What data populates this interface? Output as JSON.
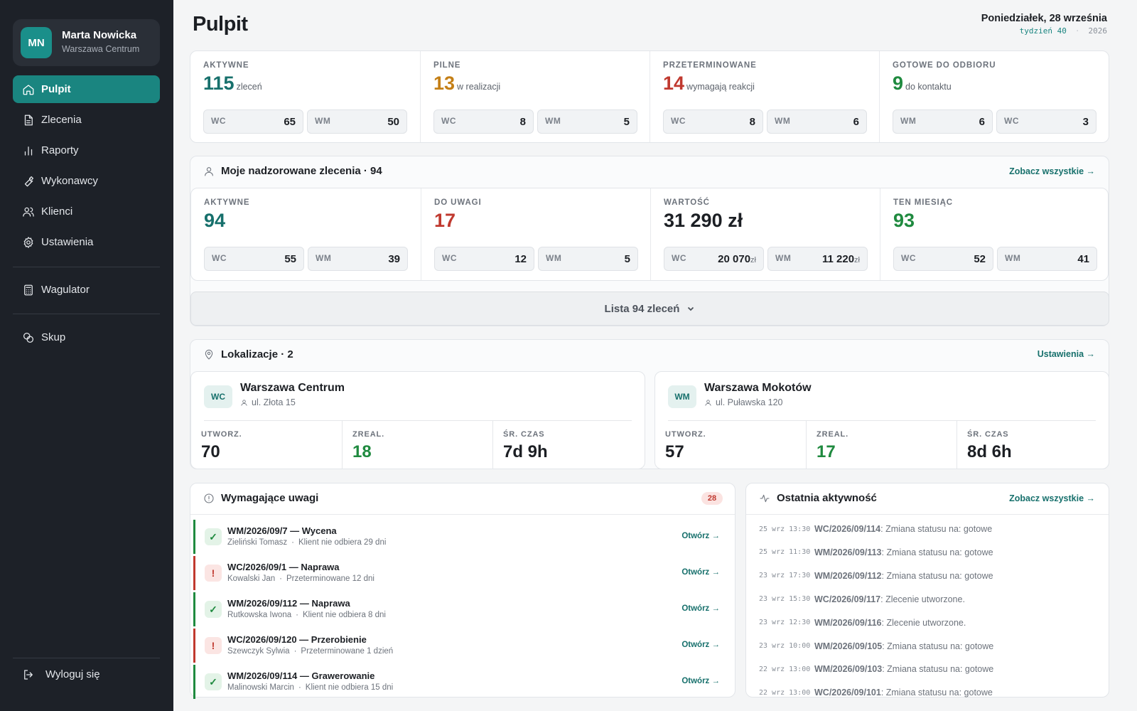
{
  "user": {
    "initials": "MN",
    "name": "Marta Nowicka",
    "location": "Warszawa Centrum"
  },
  "nav": {
    "items": [
      {
        "label": "Pulpit",
        "icon": "home-icon",
        "active": true
      },
      {
        "label": "Zlecenia",
        "icon": "document-icon"
      },
      {
        "label": "Raporty",
        "icon": "bar-chart-icon"
      },
      {
        "label": "Wykonawcy",
        "icon": "wrench-icon"
      },
      {
        "label": "Klienci",
        "icon": "users-icon"
      },
      {
        "label": "Ustawienia",
        "icon": "gear-icon"
      },
      {
        "label": "Wagulator",
        "icon": "calculator-icon"
      },
      {
        "label": "Skup",
        "icon": "coins-icon"
      }
    ],
    "logout": "Wyloguj się"
  },
  "header": {
    "title": "Pulpit",
    "date": "Poniedziałek, 28 września",
    "week": "tydzień 40",
    "year": "2026"
  },
  "summary": [
    {
      "label": "AKTYWNE",
      "value": "115",
      "unit": "zleceń",
      "color": "#17706c",
      "pills": [
        {
          "k": "WC",
          "v": "65"
        },
        {
          "k": "WM",
          "v": "50"
        }
      ]
    },
    {
      "label": "PILNE",
      "value": "13",
      "unit": "w realizacji",
      "color": "#c47f16",
      "pills": [
        {
          "k": "WC",
          "v": "8"
        },
        {
          "k": "WM",
          "v": "5"
        }
      ]
    },
    {
      "label": "PRZETERMINOWANE",
      "value": "14",
      "unit": "wymagają reakcji",
      "color": "#c0392f",
      "pills": [
        {
          "k": "WC",
          "v": "8"
        },
        {
          "k": "WM",
          "v": "6"
        }
      ]
    },
    {
      "label": "GOTOWE DO ODBIORU",
      "value": "9",
      "unit": "do kontaktu",
      "color": "#1f8a3f",
      "pills": [
        {
          "k": "WM",
          "v": "6"
        },
        {
          "k": "WC",
          "v": "3"
        }
      ]
    }
  ],
  "supervised": {
    "title": "Moje nadzorowane zlecenia · 94",
    "link": "Zobacz wszystkie →",
    "stats": [
      {
        "label": "AKTYWNE",
        "value": "94",
        "color": "#17706c",
        "pills": [
          {
            "k": "WC",
            "v": "55"
          },
          {
            "k": "WM",
            "v": "39"
          }
        ]
      },
      {
        "label": "DO UWAGI",
        "value": "17",
        "color": "#c0392f",
        "pills": [
          {
            "k": "WC",
            "v": "12"
          },
          {
            "k": "WM",
            "v": "5"
          }
        ]
      },
      {
        "label": "WARTOŚĆ",
        "value": "31 290 zł",
        "color": "#1c1f24",
        "pills": [
          {
            "k": "WC",
            "v": "20 070",
            "cur": "zł"
          },
          {
            "k": "WM",
            "v": "11 220",
            "cur": "zł"
          }
        ]
      },
      {
        "label": "TEN MIESIĄC",
        "value": "93",
        "color": "#1f8a3f",
        "pills": [
          {
            "k": "WC",
            "v": "52"
          },
          {
            "k": "WM",
            "v": "41"
          }
        ]
      }
    ],
    "list_button": "Lista 94 zleceń"
  },
  "locations": {
    "title": "Lokalizacje · 2",
    "link": "Ustawienia →",
    "items": [
      {
        "code": "WC",
        "name": "Warszawa Centrum",
        "address": "ul. Złota 15",
        "stats": [
          {
            "label": "UTWORZ.",
            "value": "70",
            "color": "#1c1f24"
          },
          {
            "label": "ZREAL.",
            "value": "18",
            "color": "#1f8a3f"
          },
          {
            "label": "ŚR. CZAS",
            "value": "7d 9h",
            "color": "#1c1f24"
          }
        ]
      },
      {
        "code": "WM",
        "name": "Warszawa Mokotów",
        "address": "ul. Puławska 120",
        "stats": [
          {
            "label": "UTWORZ.",
            "value": "57",
            "color": "#1c1f24"
          },
          {
            "label": "ZREAL.",
            "value": "17",
            "color": "#1f8a3f"
          },
          {
            "label": "ŚR. CZAS",
            "value": "8d 6h",
            "color": "#1c1f24"
          }
        ]
      }
    ]
  },
  "attention": {
    "title": "Wymagające uwagi",
    "count": "28",
    "open_label": "Otwórz →",
    "rows": [
      {
        "status": "ok",
        "icon": "✓",
        "title": "WM/2026/09/7 — Wycena",
        "client": "Zieliński Tomasz",
        "note": "Klient nie odbiera 29 dni"
      },
      {
        "status": "warn",
        "icon": "!",
        "title": "WC/2026/09/1 — Naprawa",
        "client": "Kowalski Jan",
        "note": "Przeterminowane 12 dni"
      },
      {
        "status": "ok",
        "icon": "✓",
        "title": "WM/2026/09/112 — Naprawa",
        "client": "Rutkowska Iwona",
        "note": "Klient nie odbiera 8 dni"
      },
      {
        "status": "warn",
        "icon": "!",
        "title": "WC/2026/09/120 — Przerobienie",
        "client": "Szewczyk Sylwia",
        "note": "Przeterminowane 1 dzień"
      },
      {
        "status": "ok",
        "icon": "✓",
        "title": "WM/2026/09/114 — Grawerowanie",
        "client": "Malinowski Marcin",
        "note": "Klient nie odbiera 15 dni"
      }
    ]
  },
  "activity": {
    "title": "Ostatnia aktywność",
    "link": "Zobacz wszystkie →",
    "rows": [
      {
        "ts": "25 wrz 13:30",
        "id": "WC/2026/09/114",
        "text": ": Zmiana statusu na: gotowe"
      },
      {
        "ts": "25 wrz 11:30",
        "id": "WM/2026/09/113",
        "text": ": Zmiana statusu na: gotowe"
      },
      {
        "ts": "23 wrz 17:30",
        "id": "WM/2026/09/112",
        "text": ": Zmiana statusu na: gotowe"
      },
      {
        "ts": "23 wrz 15:30",
        "id": "WC/2026/09/117",
        "text": ": Zlecenie utworzone."
      },
      {
        "ts": "23 wrz 12:30",
        "id": "WM/2026/09/116",
        "text": ": Zlecenie utworzone."
      },
      {
        "ts": "23 wrz 10:00",
        "id": "WM/2026/09/105",
        "text": ": Zmiana statusu na: gotowe"
      },
      {
        "ts": "22 wrz 13:00",
        "id": "WM/2026/09/103",
        "text": ": Zmiana statusu na: gotowe"
      },
      {
        "ts": "22 wrz 13:00",
        "id": "WC/2026/09/101",
        "text": ": Zmiana statusu na: gotowe"
      }
    ]
  }
}
